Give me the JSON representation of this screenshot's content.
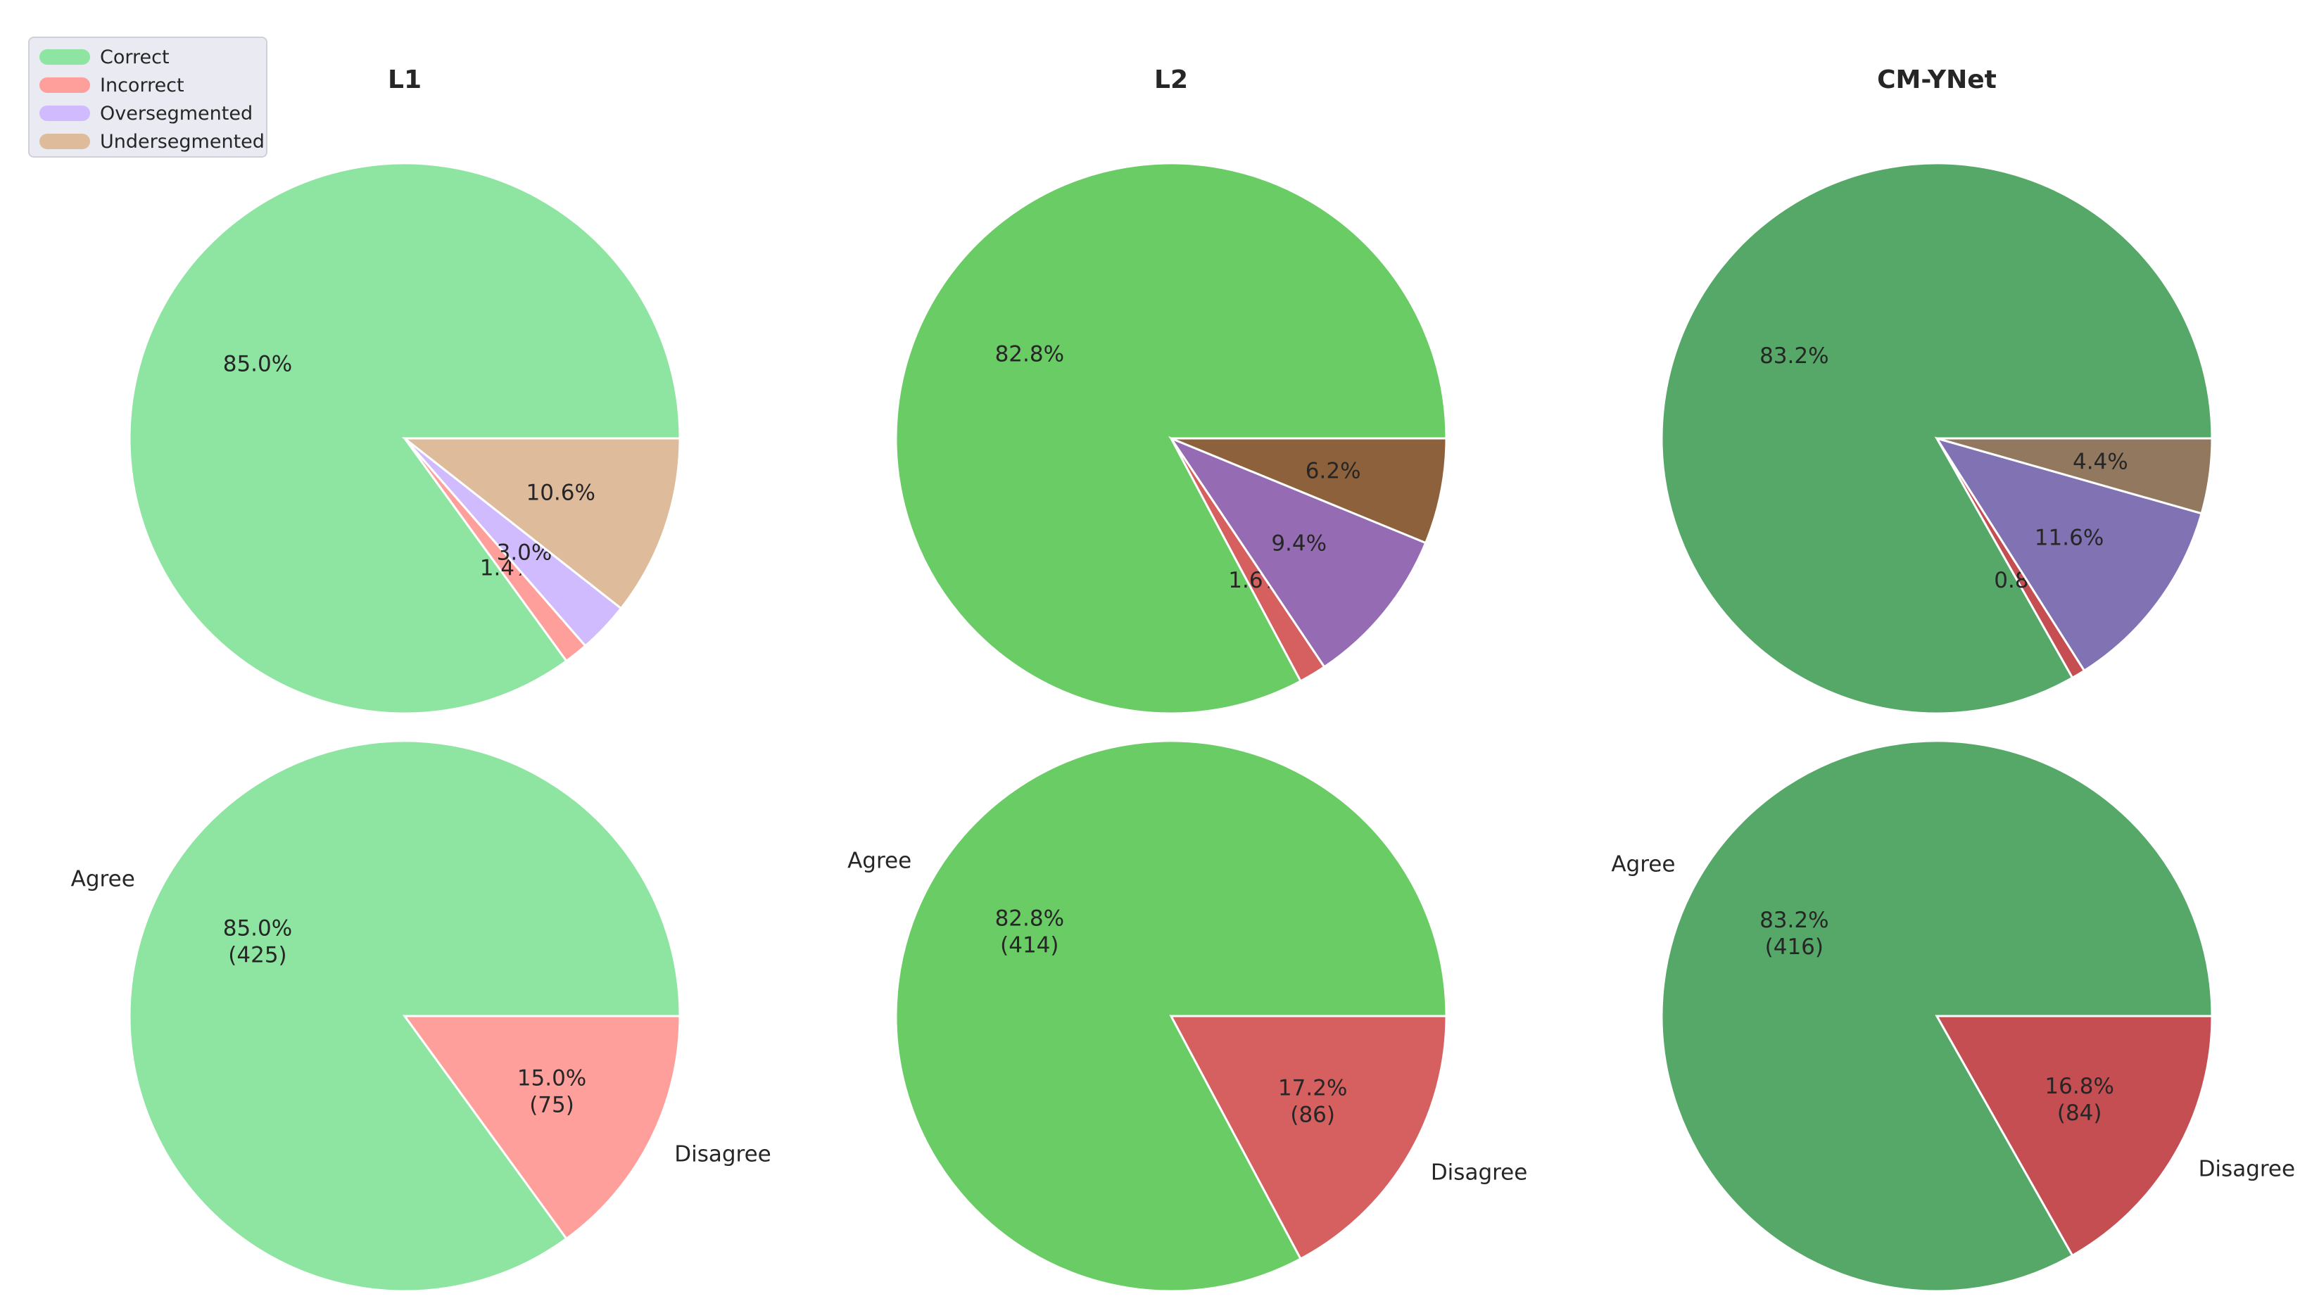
{
  "legend": {
    "items": [
      {
        "label": "Correct",
        "color": "#8de5a1"
      },
      {
        "label": "Incorrect",
        "color": "#ff9f9b"
      },
      {
        "label": "Oversegmented",
        "color": "#d0bbff"
      },
      {
        "label": "Undersegmented",
        "color": "#debb9b"
      }
    ]
  },
  "chart_data": [
    {
      "type": "pie",
      "panel": "top-left",
      "title": "L1",
      "labels": [
        "Correct",
        "Incorrect",
        "Oversegmented",
        "Undersegmented"
      ],
      "values": [
        85.0,
        1.4,
        3.0,
        10.6
      ],
      "value_labels": [
        "85.0%",
        "1.4%",
        "3.0%",
        "10.6%"
      ],
      "colors": [
        "#8de5a1",
        "#ff9f9b",
        "#d0bbff",
        "#debb9b"
      ]
    },
    {
      "type": "pie",
      "panel": "top-middle",
      "title": "L2",
      "labels": [
        "Correct",
        "Incorrect",
        "Oversegmented",
        "Undersegmented"
      ],
      "values": [
        82.8,
        1.6,
        9.4,
        6.2
      ],
      "value_labels": [
        "82.8%",
        "1.6%",
        "9.4%",
        "6.2%"
      ],
      "colors": [
        "#6acc64",
        "#d65f5f",
        "#956cb4",
        "#8c613c"
      ]
    },
    {
      "type": "pie",
      "panel": "top-right",
      "title": "CM-YNet",
      "labels": [
        "Correct",
        "Incorrect",
        "Oversegmented",
        "Undersegmented"
      ],
      "values": [
        83.2,
        0.8,
        11.6,
        4.4
      ],
      "value_labels": [
        "83.2%",
        "0.8%",
        "11.6%",
        "4.4%"
      ],
      "colors": [
        "#55a868",
        "#c44e52",
        "#8172b3",
        "#937860"
      ]
    },
    {
      "type": "pie",
      "panel": "bottom-left",
      "title": "",
      "labels": [
        "Agree",
        "Disagree"
      ],
      "values": [
        425,
        75
      ],
      "value_labels": [
        "85.0%\n(425)",
        "15.0%\n(75)"
      ],
      "colors": [
        "#8de5a1",
        "#ff9f9b"
      ]
    },
    {
      "type": "pie",
      "panel": "bottom-middle",
      "title": "",
      "labels": [
        "Agree",
        "Disagree"
      ],
      "values": [
        414,
        86
      ],
      "value_labels": [
        "82.8%\n(414)",
        "17.2%\n(86)"
      ],
      "colors": [
        "#6acc64",
        "#d65f5f"
      ]
    },
    {
      "type": "pie",
      "panel": "bottom-right",
      "title": "",
      "labels": [
        "Agree",
        "Disagree"
      ],
      "values": [
        416,
        84
      ],
      "value_labels": [
        "83.2%\n(416)",
        "16.8%\n(84)"
      ],
      "colors": [
        "#55a868",
        "#c44e52"
      ]
    }
  ]
}
